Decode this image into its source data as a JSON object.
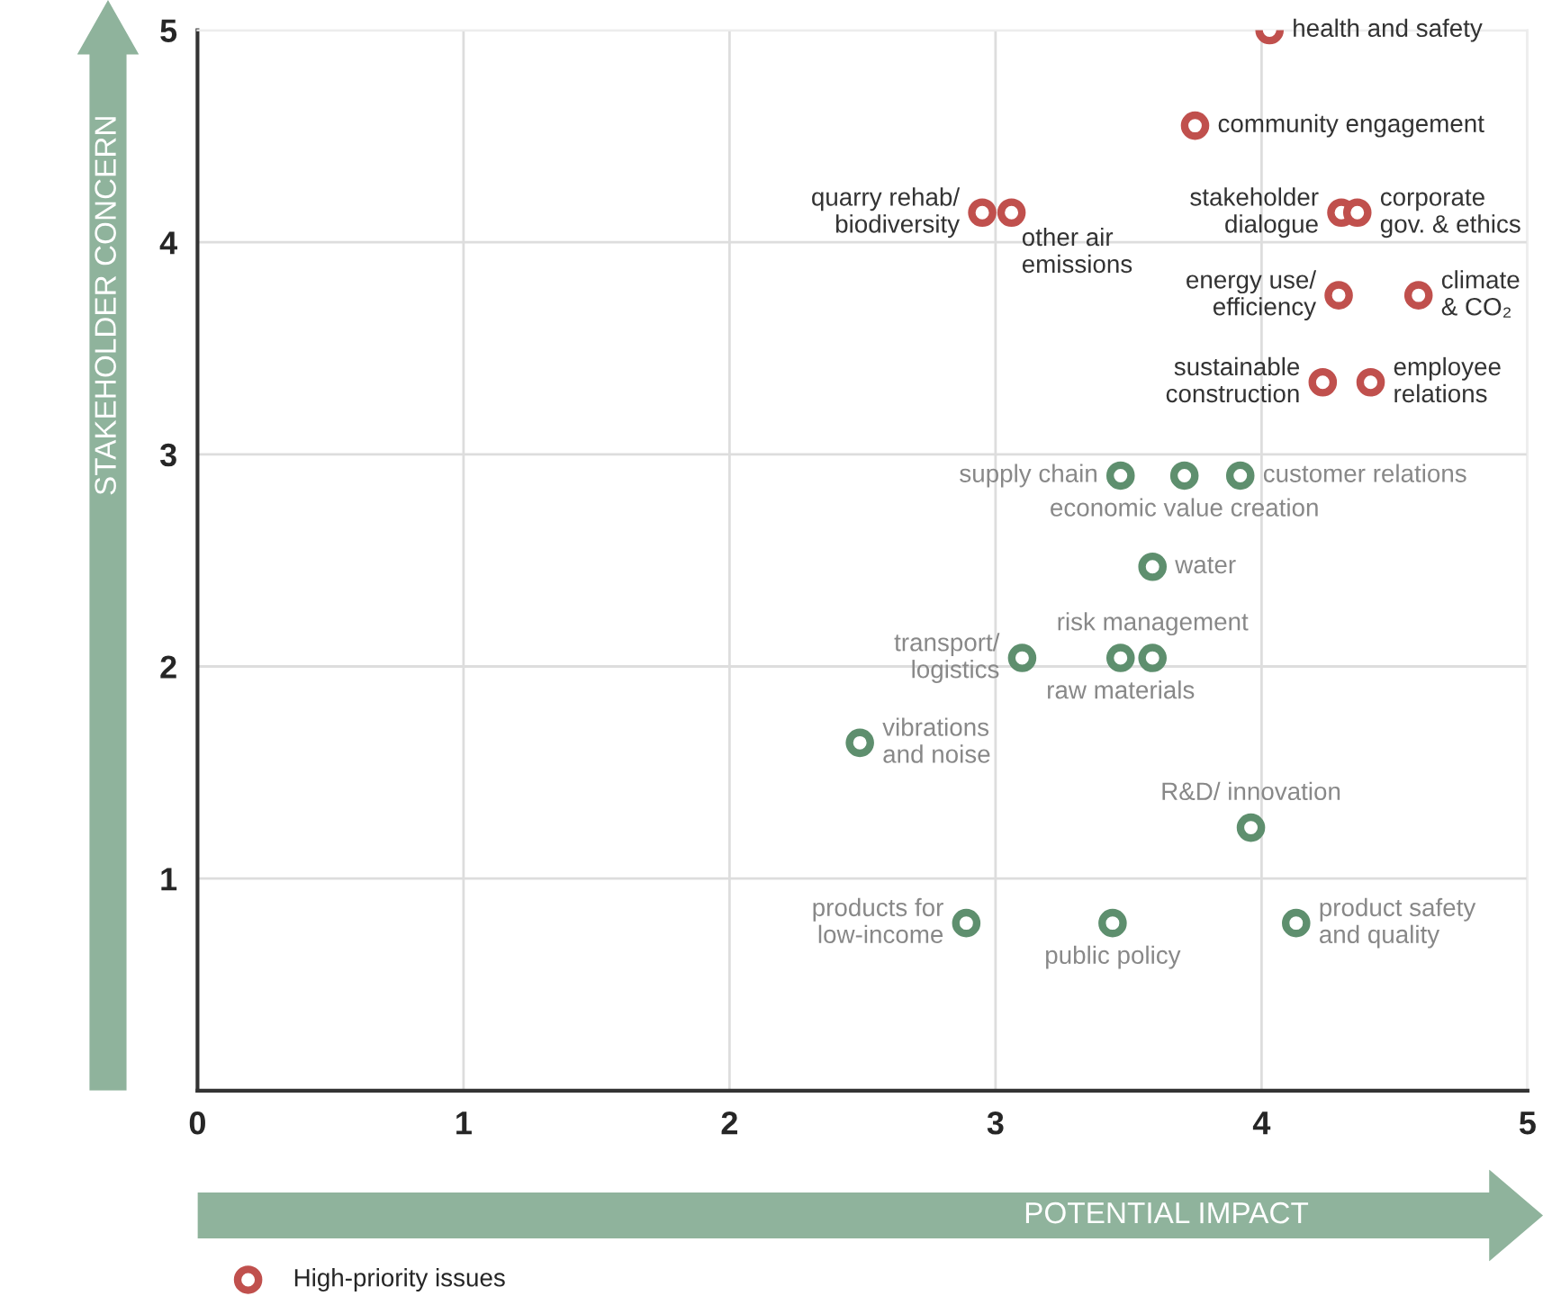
{
  "chart_data": {
    "type": "scatter",
    "xlabel": "POTENTIAL IMPACT",
    "ylabel": "STAKEHOLDER CONCERN",
    "xlim": [
      0,
      5
    ],
    "ylim": [
      0,
      5
    ],
    "xticks": [
      0,
      1,
      2,
      3,
      4,
      5
    ],
    "yticks": [
      1,
      2,
      3,
      4,
      5
    ],
    "grid": true,
    "legend": "bottom left",
    "marker": "circle",
    "series": [
      {
        "name": "High-priority issues",
        "color": "#c0504d",
        "x": [
          4.03,
          3.75,
          2.95,
          3.06,
          4.3,
          4.36,
          4.29,
          4.59,
          4.23,
          4.41
        ],
        "values": [
          5.0,
          4.55,
          4.14,
          4.14,
          4.14,
          4.14,
          3.75,
          3.75,
          3.34,
          3.34
        ]
      },
      {
        "color": "#5e8f6e",
        "x": [
          3.47,
          3.71,
          3.92,
          3.59,
          3.1,
          3.47,
          3.59,
          2.49,
          3.96,
          2.89,
          3.44,
          4.13
        ],
        "values": [
          2.9,
          2.9,
          2.9,
          2.47,
          2.04,
          2.04,
          2.04,
          1.64,
          1.24,
          0.79,
          0.79,
          0.79
        ]
      }
    ],
    "annotations": [
      {
        "text": "health and safety",
        "x": 4.03,
        "y": 5.0
      },
      {
        "text": "community engagement",
        "x": 3.75,
        "y": 4.55
      },
      {
        "text": "quarry rehab/\nbiodiversity",
        "x": 2.95,
        "y": 4.14
      },
      {
        "text": "other air\nemissions",
        "x": 3.06,
        "y": 4.14
      },
      {
        "text": "stakeholder\ndialogue",
        "x": 4.3,
        "y": 4.14
      },
      {
        "text": "corporate\ngov. & ethics",
        "x": 4.36,
        "y": 4.14
      },
      {
        "text": "energy use/\nefficiency",
        "x": 4.29,
        "y": 3.75
      },
      {
        "text": "climate\n& CO₂",
        "x": 4.59,
        "y": 3.75
      },
      {
        "text": "sustainable\nconstruction",
        "x": 4.23,
        "y": 3.34
      },
      {
        "text": "employee\nrelations",
        "x": 4.41,
        "y": 3.34
      },
      {
        "text": "supply chain",
        "x": 3.47,
        "y": 2.9
      },
      {
        "text": "economic value creation",
        "x": 3.71,
        "y": 2.9
      },
      {
        "text": "customer relations",
        "x": 3.92,
        "y": 2.9
      },
      {
        "text": "water",
        "x": 3.59,
        "y": 2.47
      },
      {
        "text": "transport/\nlogistics",
        "x": 3.1,
        "y": 2.04
      },
      {
        "text": "raw materials",
        "x": 3.47,
        "y": 2.04
      },
      {
        "text": "risk management",
        "x": 3.59,
        "y": 2.04
      },
      {
        "text": "vibrations\nand noise",
        "x": 2.49,
        "y": 1.64
      },
      {
        "text": "R&D/ innovation",
        "x": 3.96,
        "y": 1.24
      },
      {
        "text": "products for\nlow-income",
        "x": 2.89,
        "y": 0.79
      },
      {
        "text": "public policy",
        "x": 3.44,
        "y": 0.79
      },
      {
        "text": "product safety\nand quality",
        "x": 4.13,
        "y": 0.79
      }
    ]
  }
}
